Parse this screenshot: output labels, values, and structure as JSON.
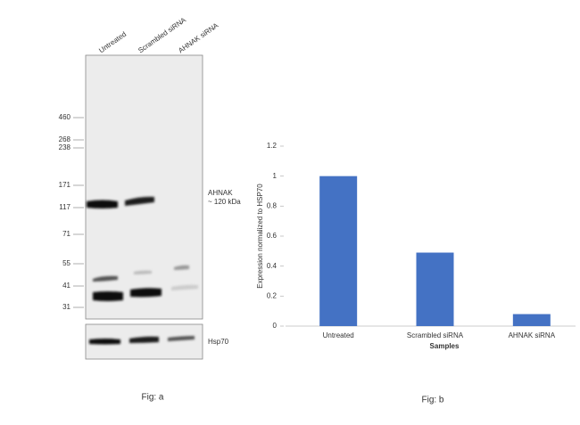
{
  "figure_a": {
    "lanes": [
      "Untreated",
      "Scrambled siRNA",
      "AHNAK siRNA"
    ],
    "markers": [
      "460",
      "268",
      "238",
      "171",
      "117",
      "71",
      "55",
      "41",
      "31"
    ],
    "target_label": "AHNAK",
    "target_size": "~ 120 kDa",
    "control_label": "Hsp70",
    "caption": "Fig: a"
  },
  "chart_data": {
    "type": "bar",
    "categories": [
      "Untreated",
      "Scrambled siRNA",
      "AHNAK siRNA"
    ],
    "values": [
      1,
      0.49,
      0.08
    ],
    "color": "#4472c4",
    "xlabel": "Samples",
    "ylabel": "Expression normalized to HSP70",
    "ylim": [
      0,
      1.2
    ],
    "yticks": [
      0,
      0.2,
      0.4,
      0.6,
      0.8,
      1,
      1.2
    ],
    "grid": false,
    "caption": "Fig: b"
  }
}
